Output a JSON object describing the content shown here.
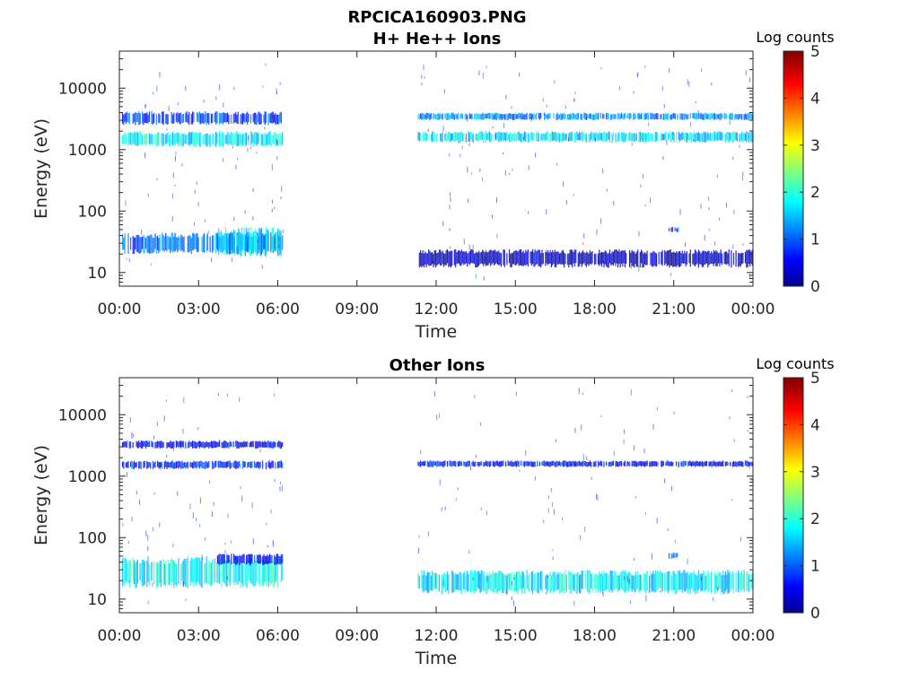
{
  "figure": {
    "main_title": "RPCICA160903.PNG",
    "colorbar_label": "Log counts",
    "colorbar": {
      "range": [
        0,
        5
      ],
      "ticks": [
        "0",
        "1",
        "2",
        "3",
        "4",
        "5"
      ],
      "colormap": [
        "#00008f",
        "#0000ff",
        "#00ffff",
        "#ffff00",
        "#ff0000",
        "#800000"
      ]
    }
  },
  "chart_data": [
    {
      "type": "heatmap",
      "title": "H+ He++ Ions",
      "xlabel": "Time",
      "ylabel": "Energy (eV)",
      "x_ticks": [
        "00:00",
        "03:00",
        "06:00",
        "09:00",
        "12:00",
        "15:00",
        "18:00",
        "21:00",
        "00:00"
      ],
      "y_ticks": [
        "10",
        "100",
        "1000",
        "10000"
      ],
      "xlim_hours": [
        0,
        24
      ],
      "ylim_eV": [
        6,
        40000
      ],
      "y_scale": "log",
      "grid": false,
      "data_gap_hours": [
        6.2,
        11.3
      ],
      "bands": [
        {
          "t": [
            0.1,
            6.2
          ],
          "energy_eV": [
            1100,
            2000
          ],
          "log_counts": 1.8
        },
        {
          "t": [
            0.1,
            6.2
          ],
          "energy_eV": [
            2500,
            4200
          ],
          "log_counts": 0.9
        },
        {
          "t": [
            0.1,
            6.2
          ],
          "energy_eV": [
            20,
            45
          ],
          "log_counts": 1.2
        },
        {
          "t": [
            3.7,
            6.2
          ],
          "energy_eV": [
            18,
            55
          ],
          "log_counts": 1.6
        },
        {
          "t": [
            11.3,
            24
          ],
          "energy_eV": [
            1300,
            2000
          ],
          "log_counts": 1.7
        },
        {
          "t": [
            11.3,
            24
          ],
          "energy_eV": [
            3000,
            4000
          ],
          "log_counts": 1.3
        },
        {
          "t": [
            11.3,
            24
          ],
          "energy_eV": [
            12,
            24
          ],
          "log_counts": 0.3
        },
        {
          "t": [
            20.8,
            21.2
          ],
          "energy_eV": [
            45,
            55
          ],
          "log_counts": 1.0
        }
      ]
    },
    {
      "type": "heatmap",
      "title": "Other Ions",
      "xlabel": "Time",
      "ylabel": "Energy (eV)",
      "x_ticks": [
        "00:00",
        "03:00",
        "06:00",
        "09:00",
        "12:00",
        "15:00",
        "18:00",
        "21:00",
        "00:00"
      ],
      "y_ticks": [
        "10",
        "100",
        "1000",
        "10000"
      ],
      "xlim_hours": [
        0,
        24
      ],
      "ylim_eV": [
        6,
        40000
      ],
      "y_scale": "log",
      "grid": false,
      "data_gap_hours": [
        6.2,
        11.3
      ],
      "bands": [
        {
          "t": [
            0.1,
            6.2
          ],
          "energy_eV": [
            15,
            50
          ],
          "log_counts": 1.8
        },
        {
          "t": [
            3.7,
            6.2
          ],
          "energy_eV": [
            35,
            55
          ],
          "log_counts": 0.6
        },
        {
          "t": [
            0.1,
            6.2
          ],
          "energy_eV": [
            1300,
            1800
          ],
          "log_counts": 0.8
        },
        {
          "t": [
            0.1,
            6.2
          ],
          "energy_eV": [
            2800,
            3800
          ],
          "log_counts": 0.6
        },
        {
          "t": [
            11.3,
            24
          ],
          "energy_eV": [
            12,
            30
          ],
          "log_counts": 1.8
        },
        {
          "t": [
            11.3,
            24
          ],
          "energy_eV": [
            1400,
            1800
          ],
          "log_counts": 0.7
        },
        {
          "t": [
            20.8,
            21.2
          ],
          "energy_eV": [
            45,
            58
          ],
          "log_counts": 1.2
        }
      ]
    }
  ]
}
